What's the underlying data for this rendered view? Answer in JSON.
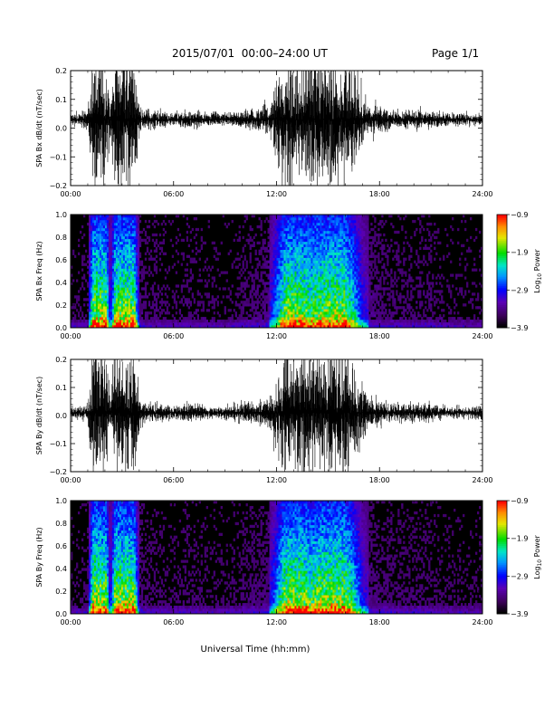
{
  "header": {
    "title": "2015/07/01  00:00–24:00 UT",
    "page": "Page 1/1"
  },
  "footer": {
    "xlabel": "Universal Time (hh:mm)"
  },
  "chart_data": [
    {
      "type": "line",
      "ylabel": "SPA Bx dB/dt (nT/sec)",
      "ylim": [
        -0.2,
        0.2
      ],
      "yticks": [
        "0.2",
        "0.1",
        "0.0",
        "−0.1",
        "−0.2"
      ],
      "xticks": [
        "00:00",
        "06:00",
        "12:00",
        "18:00",
        "24:00"
      ],
      "xlim_hours": [
        0,
        24
      ],
      "series": [
        {
          "x_hours": [
            0,
            0.5,
            1,
            1.3,
            1.6,
            1.9,
            2.1,
            2.3,
            2.6,
            2.9,
            3.2,
            3.4,
            3.7,
            4.0,
            4.3,
            5,
            6,
            7,
            8,
            9,
            10,
            11,
            11.5,
            12,
            12.5,
            13,
            13.5,
            14,
            14.5,
            15,
            15.5,
            16,
            16.5,
            17,
            17.5,
            18,
            19,
            20,
            21,
            22,
            23,
            24
          ],
          "amplitude": [
            0.02,
            0.02,
            0.03,
            0.2,
            0.2,
            0.2,
            0.2,
            0.05,
            0.2,
            0.2,
            0.2,
            0.2,
            0.2,
            0.05,
            0.03,
            0.03,
            0.02,
            0.03,
            0.02,
            0.02,
            0.03,
            0.04,
            0.05,
            0.12,
            0.2,
            0.2,
            0.2,
            0.18,
            0.2,
            0.2,
            0.2,
            0.2,
            0.15,
            0.08,
            0.05,
            0.04,
            0.03,
            0.03,
            0.03,
            0.02,
            0.02,
            0.02
          ],
          "baseline": 0.03
        }
      ]
    },
    {
      "type": "heatmap",
      "ylabel": "SPA Bx Freq (Hz)",
      "ylim": [
        0.0,
        1.0
      ],
      "yticks": [
        "1.0",
        "0.8",
        "0.6",
        "0.4",
        "0.2",
        "0.0"
      ],
      "xticks": [
        "00:00",
        "06:00",
        "12:00",
        "18:00",
        "24:00"
      ],
      "colorbar": {
        "label": "Log10 Power",
        "label_main": "Log",
        "label_sub": "10",
        "label_rest": " Power",
        "range": [
          -3.9,
          -0.9
        ],
        "ticks": [
          "−0.9",
          "−1.9",
          "−2.9",
          "−3.9"
        ]
      }
    },
    {
      "type": "line",
      "ylabel": "SPA By dB/dt (nT/sec)",
      "ylim": [
        -0.2,
        0.2
      ],
      "yticks": [
        "0.2",
        "0.1",
        "0.0",
        "−0.1",
        "−0.2"
      ],
      "xticks": [
        "00:00",
        "06:00",
        "12:00",
        "18:00",
        "24:00"
      ],
      "xlim_hours": [
        0,
        24
      ],
      "series": [
        {
          "x_hours": [
            0,
            0.5,
            1,
            1.3,
            1.6,
            1.9,
            2.1,
            2.3,
            2.6,
            2.9,
            3.2,
            3.4,
            3.7,
            4.0,
            4.3,
            5,
            6,
            7,
            8,
            9,
            10,
            11,
            11.5,
            12,
            12.5,
            13,
            13.5,
            14,
            14.5,
            15,
            15.5,
            16,
            16.5,
            17,
            17.5,
            18,
            19,
            20,
            21,
            22,
            23,
            24
          ],
          "amplitude": [
            0.02,
            0.02,
            0.03,
            0.2,
            0.2,
            0.2,
            0.2,
            0.05,
            0.2,
            0.2,
            0.2,
            0.2,
            0.2,
            0.05,
            0.03,
            0.03,
            0.02,
            0.03,
            0.02,
            0.02,
            0.03,
            0.04,
            0.05,
            0.12,
            0.2,
            0.2,
            0.2,
            0.18,
            0.2,
            0.2,
            0.2,
            0.2,
            0.15,
            0.08,
            0.05,
            0.04,
            0.03,
            0.03,
            0.03,
            0.02,
            0.02,
            0.02
          ],
          "baseline": 0.01
        }
      ]
    },
    {
      "type": "heatmap",
      "ylabel": "SPA By Freq (Hz)",
      "ylim": [
        0.0,
        1.0
      ],
      "yticks": [
        "1.0",
        "0.8",
        "0.6",
        "0.4",
        "0.2",
        "0.0"
      ],
      "xticks": [
        "00:00",
        "06:00",
        "12:00",
        "18:00",
        "24:00"
      ],
      "colorbar": {
        "label": "Log10 Power",
        "label_main": "Log",
        "label_sub": "10",
        "label_rest": " Power",
        "range": [
          -3.9,
          -0.9
        ],
        "ticks": [
          "−0.9",
          "−1.9",
          "−2.9",
          "−3.9"
        ]
      }
    }
  ]
}
